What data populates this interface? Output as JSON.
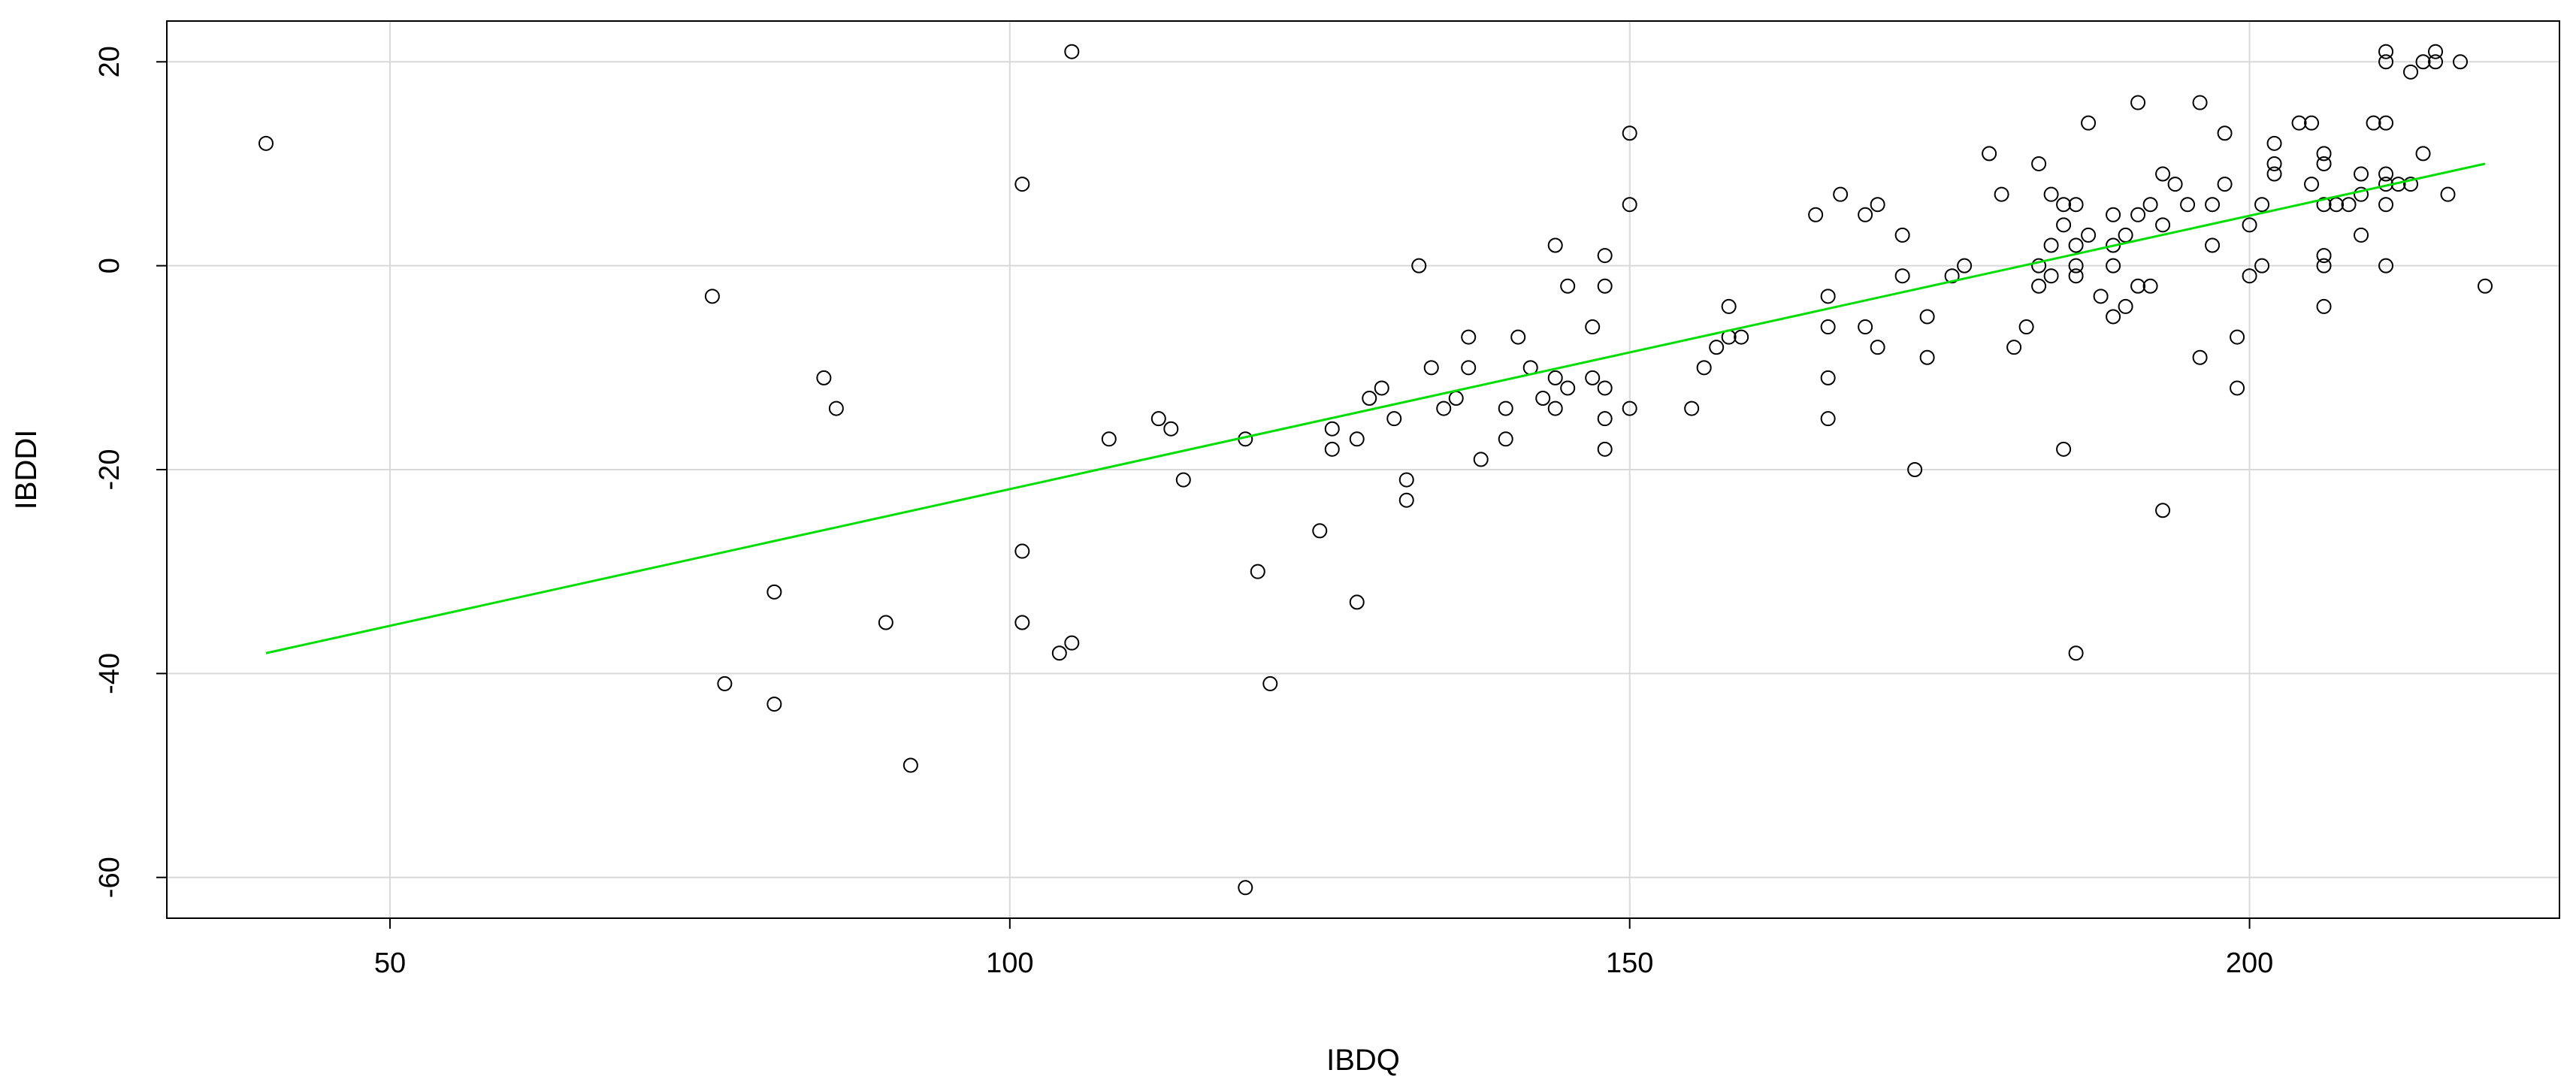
{
  "chart_data": {
    "type": "scatter",
    "title": "",
    "xlabel": "IBDQ",
    "ylabel": "IBDDI",
    "xlim": [
      32,
      225
    ],
    "ylim": [
      -64,
      24
    ],
    "x_ticks": [
      50,
      100,
      150,
      200
    ],
    "y_ticks": [
      -60,
      -40,
      -20,
      0,
      20
    ],
    "grid": true,
    "point_color": "#000000",
    "line_color": "#00dd00",
    "regression_line": {
      "x": [
        40,
        219
      ],
      "y": [
        -38,
        10
      ]
    },
    "points": [
      [
        40,
        12
      ],
      [
        76,
        -3
      ],
      [
        77,
        -41
      ],
      [
        81,
        -32
      ],
      [
        81,
        -43
      ],
      [
        85,
        -11
      ],
      [
        86,
        -14
      ],
      [
        90,
        -35
      ],
      [
        92,
        -49
      ],
      [
        101,
        8
      ],
      [
        101,
        -28
      ],
      [
        101,
        -35
      ],
      [
        104,
        -38
      ],
      [
        105,
        21
      ],
      [
        105,
        -37
      ],
      [
        108,
        -17
      ],
      [
        112,
        -15
      ],
      [
        113,
        -16
      ],
      [
        114,
        -21
      ],
      [
        119,
        -17
      ],
      [
        119,
        -61
      ],
      [
        120,
        -30
      ],
      [
        121,
        -41
      ],
      [
        125,
        -26
      ],
      [
        126,
        -16
      ],
      [
        126,
        -18
      ],
      [
        128,
        -17
      ],
      [
        128,
        -33
      ],
      [
        129,
        -13
      ],
      [
        130,
        -12
      ],
      [
        131,
        -15
      ],
      [
        132,
        -21
      ],
      [
        132,
        -23
      ],
      [
        133,
        0
      ],
      [
        134,
        -10
      ],
      [
        135,
        -14
      ],
      [
        136,
        -13
      ],
      [
        137,
        -7
      ],
      [
        137,
        -10
      ],
      [
        138,
        -19
      ],
      [
        140,
        -17
      ],
      [
        140,
        -14
      ],
      [
        141,
        -7
      ],
      [
        142,
        -10
      ],
      [
        143,
        -13
      ],
      [
        144,
        2
      ],
      [
        144,
        -11
      ],
      [
        144,
        -14
      ],
      [
        145,
        -2
      ],
      [
        145,
        -12
      ],
      [
        147,
        -6
      ],
      [
        147,
        -11
      ],
      [
        148,
        1
      ],
      [
        148,
        -2
      ],
      [
        148,
        -12
      ],
      [
        148,
        -15
      ],
      [
        148,
        -18
      ],
      [
        150,
        13
      ],
      [
        150,
        6
      ],
      [
        150,
        -14
      ],
      [
        155,
        -14
      ],
      [
        156,
        -10
      ],
      [
        157,
        -8
      ],
      [
        158,
        -4
      ],
      [
        158,
        -7
      ],
      [
        159,
        -7
      ],
      [
        165,
        5
      ],
      [
        166,
        -3
      ],
      [
        166,
        -6
      ],
      [
        166,
        -11
      ],
      [
        166,
        -15
      ],
      [
        167,
        7
      ],
      [
        169,
        5
      ],
      [
        169,
        -6
      ],
      [
        170,
        6
      ],
      [
        170,
        -8
      ],
      [
        172,
        3
      ],
      [
        172,
        -1
      ],
      [
        173,
        -20
      ],
      [
        174,
        -5
      ],
      [
        174,
        -9
      ],
      [
        176,
        -1
      ],
      [
        177,
        0
      ],
      [
        179,
        11
      ],
      [
        180,
        7
      ],
      [
        181,
        -8
      ],
      [
        182,
        -6
      ],
      [
        183,
        10
      ],
      [
        183,
        0
      ],
      [
        183,
        -2
      ],
      [
        184,
        7
      ],
      [
        184,
        2
      ],
      [
        184,
        -1
      ],
      [
        185,
        6
      ],
      [
        185,
        4
      ],
      [
        185,
        -18
      ],
      [
        186,
        6
      ],
      [
        186,
        2
      ],
      [
        186,
        0
      ],
      [
        186,
        -1
      ],
      [
        186,
        -38
      ],
      [
        187,
        14
      ],
      [
        187,
        3
      ],
      [
        188,
        -3
      ],
      [
        189,
        5
      ],
      [
        189,
        2
      ],
      [
        189,
        0
      ],
      [
        189,
        -5
      ],
      [
        190,
        3
      ],
      [
        190,
        -4
      ],
      [
        191,
        16
      ],
      [
        191,
        5
      ],
      [
        191,
        -2
      ],
      [
        192,
        6
      ],
      [
        192,
        -2
      ],
      [
        193,
        9
      ],
      [
        193,
        4
      ],
      [
        193,
        -24
      ],
      [
        194,
        8
      ],
      [
        195,
        6
      ],
      [
        196,
        16
      ],
      [
        196,
        -9
      ],
      [
        197,
        6
      ],
      [
        197,
        2
      ],
      [
        198,
        13
      ],
      [
        198,
        8
      ],
      [
        199,
        -7
      ],
      [
        199,
        -12
      ],
      [
        200,
        4
      ],
      [
        200,
        -1
      ],
      [
        201,
        6
      ],
      [
        201,
        0
      ],
      [
        202,
        12
      ],
      [
        202,
        10
      ],
      [
        202,
        9
      ],
      [
        204,
        14
      ],
      [
        205,
        14
      ],
      [
        205,
        8
      ],
      [
        206,
        11
      ],
      [
        206,
        10
      ],
      [
        206,
        6
      ],
      [
        206,
        1
      ],
      [
        206,
        0
      ],
      [
        206,
        -4
      ],
      [
        207,
        6
      ],
      [
        208,
        6
      ],
      [
        209,
        9
      ],
      [
        209,
        7
      ],
      [
        209,
        3
      ],
      [
        210,
        14
      ],
      [
        211,
        21
      ],
      [
        211,
        20
      ],
      [
        211,
        14
      ],
      [
        211,
        9
      ],
      [
        211,
        8
      ],
      [
        211,
        6
      ],
      [
        211,
        0
      ],
      [
        212,
        8
      ],
      [
        213,
        8
      ],
      [
        213,
        19
      ],
      [
        214,
        20
      ],
      [
        214,
        11
      ],
      [
        215,
        21
      ],
      [
        215,
        20
      ],
      [
        216,
        7
      ],
      [
        217,
        20
      ],
      [
        219,
        -2
      ]
    ]
  }
}
